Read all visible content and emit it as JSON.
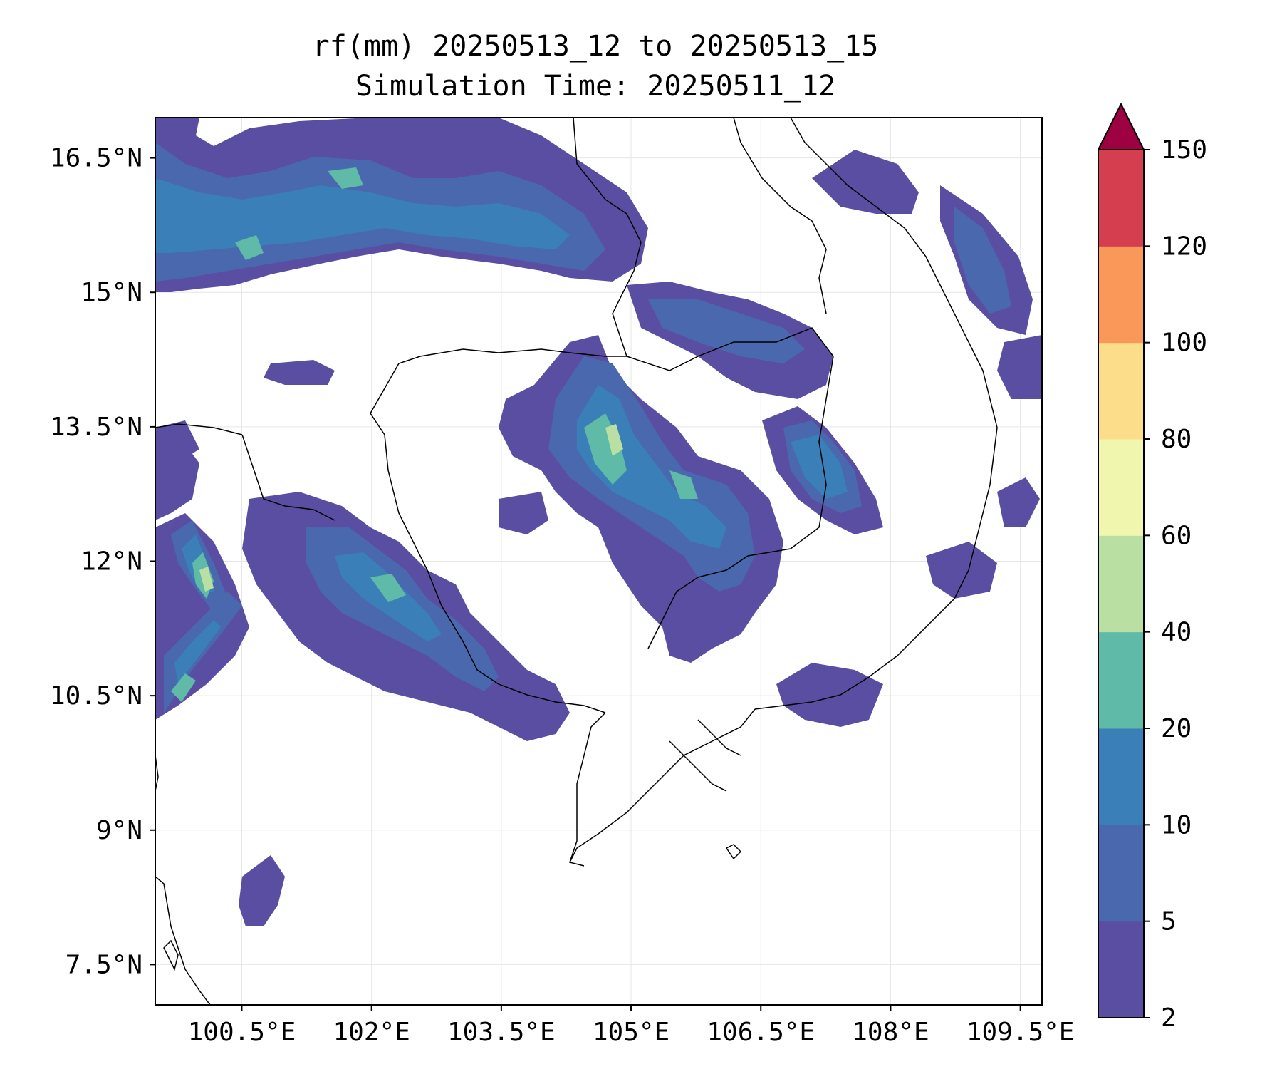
{
  "figure": {
    "title_line1": "rf(mm) 20250513_12 to 20250513_15",
    "title_line2": "Simulation Time: 20250511_12"
  },
  "map": {
    "lon_range": [
      99.5,
      109.75
    ],
    "lat_range": [
      7.05,
      16.95
    ],
    "x_ticks": [
      {
        "value": 100.5,
        "label": "100.5°E"
      },
      {
        "value": 102,
        "label": "102°E"
      },
      {
        "value": 103.5,
        "label": "103.5°E"
      },
      {
        "value": 105,
        "label": "105°E"
      },
      {
        "value": 106.5,
        "label": "106.5°E"
      },
      {
        "value": 108,
        "label": "108°E"
      },
      {
        "value": 109.5,
        "label": "109.5°E"
      }
    ],
    "y_ticks": [
      {
        "value": 7.5,
        "label": "7.5°N"
      },
      {
        "value": 9,
        "label": "9°N"
      },
      {
        "value": 10.5,
        "label": "10.5°N"
      },
      {
        "value": 12,
        "label": "12°N"
      },
      {
        "value": 13.5,
        "label": "13.5°N"
      },
      {
        "value": 15,
        "label": "15°N"
      },
      {
        "value": 16.5,
        "label": "16.5°N"
      }
    ],
    "gridlines": true
  },
  "colorbar": {
    "levels": [
      "2",
      "5",
      "10",
      "20",
      "40",
      "60",
      "80",
      "100",
      "120",
      "150"
    ],
    "colors": [
      "#5a4ea2",
      "#4a68ae",
      "#3a7fb8",
      "#5fbaa8",
      "#b9e0a2",
      "#f1f6ae",
      "#fcdd8a",
      "#f99858",
      "#d53e4f",
      "#9e0142"
    ],
    "extend": "max"
  }
}
